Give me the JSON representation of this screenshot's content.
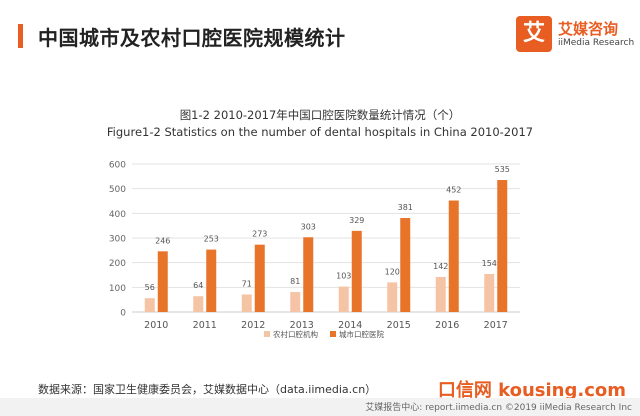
{
  "header": {
    "title": "中国城市及农村口腔医院规模统计",
    "accent_color": "#e85d22"
  },
  "logo": {
    "mark": "艾",
    "name_cn": "艾媒咨询",
    "name_en": "iiMedia Research",
    "color": "#e85d22"
  },
  "chart_data": {
    "type": "bar",
    "title": "图1-2 2010-2017年中国口腔医院数量统计情况（个）",
    "subtitle": "Figure1-2 Statistics on the number of dental hospitals in China 2010-2017",
    "categories": [
      "2010",
      "2011",
      "2012",
      "2013",
      "2014",
      "2015",
      "2016",
      "2017"
    ],
    "series": [
      {
        "name": "农村口腔机构",
        "color": "#f5c4a5",
        "values": [
          56,
          64,
          71,
          81,
          103,
          120,
          142,
          154
        ]
      },
      {
        "name": "城市口腔医院",
        "color": "#e8742a",
        "values": [
          246,
          253,
          273,
          303,
          329,
          381,
          452,
          535
        ]
      }
    ],
    "ylim": [
      0,
      600
    ],
    "yticks": [
      0,
      100,
      200,
      300,
      400,
      500,
      600
    ],
    "grid": true,
    "legend": "bottom-center"
  },
  "footer": {
    "source": "数据来源：国家卫生健康委员会，艾媒数据中心（data.iimedia.cn）",
    "watermark": "口信网 kousing.com",
    "copyright": "艾媒报告中心: report.iimedia.cn  ©2019  iiMedia Research Inc"
  }
}
